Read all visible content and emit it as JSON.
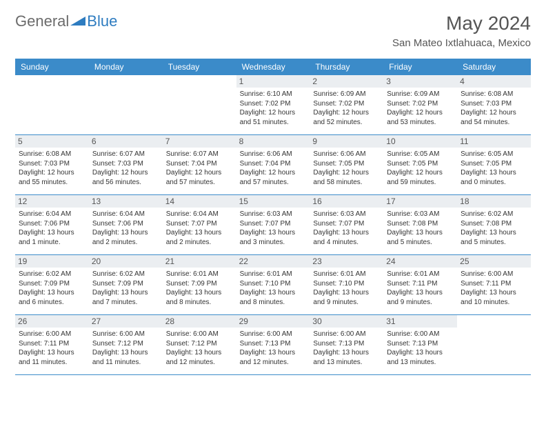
{
  "logo": {
    "part1": "General",
    "part2": "Blue"
  },
  "title": "May 2024",
  "location": "San Mateo Ixtlahuaca, Mexico",
  "colors": {
    "header_bg": "#3b8bc9",
    "header_text": "#ffffff",
    "daynum_bg": "#ebeef1",
    "title_text": "#555555",
    "body_text": "#333333",
    "logo_gray": "#6b6b6b",
    "logo_blue": "#2e7cc0"
  },
  "weekdays": [
    "Sunday",
    "Monday",
    "Tuesday",
    "Wednesday",
    "Thursday",
    "Friday",
    "Saturday"
  ],
  "weeks": [
    [
      {
        "empty": true
      },
      {
        "empty": true
      },
      {
        "empty": true
      },
      {
        "num": "1",
        "sunrise": "Sunrise: 6:10 AM",
        "sunset": "Sunset: 7:02 PM",
        "daylight": "Daylight: 12 hours and 51 minutes."
      },
      {
        "num": "2",
        "sunrise": "Sunrise: 6:09 AM",
        "sunset": "Sunset: 7:02 PM",
        "daylight": "Daylight: 12 hours and 52 minutes."
      },
      {
        "num": "3",
        "sunrise": "Sunrise: 6:09 AM",
        "sunset": "Sunset: 7:02 PM",
        "daylight": "Daylight: 12 hours and 53 minutes."
      },
      {
        "num": "4",
        "sunrise": "Sunrise: 6:08 AM",
        "sunset": "Sunset: 7:03 PM",
        "daylight": "Daylight: 12 hours and 54 minutes."
      }
    ],
    [
      {
        "num": "5",
        "sunrise": "Sunrise: 6:08 AM",
        "sunset": "Sunset: 7:03 PM",
        "daylight": "Daylight: 12 hours and 55 minutes."
      },
      {
        "num": "6",
        "sunrise": "Sunrise: 6:07 AM",
        "sunset": "Sunset: 7:03 PM",
        "daylight": "Daylight: 12 hours and 56 minutes."
      },
      {
        "num": "7",
        "sunrise": "Sunrise: 6:07 AM",
        "sunset": "Sunset: 7:04 PM",
        "daylight": "Daylight: 12 hours and 57 minutes."
      },
      {
        "num": "8",
        "sunrise": "Sunrise: 6:06 AM",
        "sunset": "Sunset: 7:04 PM",
        "daylight": "Daylight: 12 hours and 57 minutes."
      },
      {
        "num": "9",
        "sunrise": "Sunrise: 6:06 AM",
        "sunset": "Sunset: 7:05 PM",
        "daylight": "Daylight: 12 hours and 58 minutes."
      },
      {
        "num": "10",
        "sunrise": "Sunrise: 6:05 AM",
        "sunset": "Sunset: 7:05 PM",
        "daylight": "Daylight: 12 hours and 59 minutes."
      },
      {
        "num": "11",
        "sunrise": "Sunrise: 6:05 AM",
        "sunset": "Sunset: 7:05 PM",
        "daylight": "Daylight: 13 hours and 0 minutes."
      }
    ],
    [
      {
        "num": "12",
        "sunrise": "Sunrise: 6:04 AM",
        "sunset": "Sunset: 7:06 PM",
        "daylight": "Daylight: 13 hours and 1 minute."
      },
      {
        "num": "13",
        "sunrise": "Sunrise: 6:04 AM",
        "sunset": "Sunset: 7:06 PM",
        "daylight": "Daylight: 13 hours and 2 minutes."
      },
      {
        "num": "14",
        "sunrise": "Sunrise: 6:04 AM",
        "sunset": "Sunset: 7:07 PM",
        "daylight": "Daylight: 13 hours and 2 minutes."
      },
      {
        "num": "15",
        "sunrise": "Sunrise: 6:03 AM",
        "sunset": "Sunset: 7:07 PM",
        "daylight": "Daylight: 13 hours and 3 minutes."
      },
      {
        "num": "16",
        "sunrise": "Sunrise: 6:03 AM",
        "sunset": "Sunset: 7:07 PM",
        "daylight": "Daylight: 13 hours and 4 minutes."
      },
      {
        "num": "17",
        "sunrise": "Sunrise: 6:03 AM",
        "sunset": "Sunset: 7:08 PM",
        "daylight": "Daylight: 13 hours and 5 minutes."
      },
      {
        "num": "18",
        "sunrise": "Sunrise: 6:02 AM",
        "sunset": "Sunset: 7:08 PM",
        "daylight": "Daylight: 13 hours and 5 minutes."
      }
    ],
    [
      {
        "num": "19",
        "sunrise": "Sunrise: 6:02 AM",
        "sunset": "Sunset: 7:09 PM",
        "daylight": "Daylight: 13 hours and 6 minutes."
      },
      {
        "num": "20",
        "sunrise": "Sunrise: 6:02 AM",
        "sunset": "Sunset: 7:09 PM",
        "daylight": "Daylight: 13 hours and 7 minutes."
      },
      {
        "num": "21",
        "sunrise": "Sunrise: 6:01 AM",
        "sunset": "Sunset: 7:09 PM",
        "daylight": "Daylight: 13 hours and 8 minutes."
      },
      {
        "num": "22",
        "sunrise": "Sunrise: 6:01 AM",
        "sunset": "Sunset: 7:10 PM",
        "daylight": "Daylight: 13 hours and 8 minutes."
      },
      {
        "num": "23",
        "sunrise": "Sunrise: 6:01 AM",
        "sunset": "Sunset: 7:10 PM",
        "daylight": "Daylight: 13 hours and 9 minutes."
      },
      {
        "num": "24",
        "sunrise": "Sunrise: 6:01 AM",
        "sunset": "Sunset: 7:11 PM",
        "daylight": "Daylight: 13 hours and 9 minutes."
      },
      {
        "num": "25",
        "sunrise": "Sunrise: 6:00 AM",
        "sunset": "Sunset: 7:11 PM",
        "daylight": "Daylight: 13 hours and 10 minutes."
      }
    ],
    [
      {
        "num": "26",
        "sunrise": "Sunrise: 6:00 AM",
        "sunset": "Sunset: 7:11 PM",
        "daylight": "Daylight: 13 hours and 11 minutes."
      },
      {
        "num": "27",
        "sunrise": "Sunrise: 6:00 AM",
        "sunset": "Sunset: 7:12 PM",
        "daylight": "Daylight: 13 hours and 11 minutes."
      },
      {
        "num": "28",
        "sunrise": "Sunrise: 6:00 AM",
        "sunset": "Sunset: 7:12 PM",
        "daylight": "Daylight: 13 hours and 12 minutes."
      },
      {
        "num": "29",
        "sunrise": "Sunrise: 6:00 AM",
        "sunset": "Sunset: 7:13 PM",
        "daylight": "Daylight: 13 hours and 12 minutes."
      },
      {
        "num": "30",
        "sunrise": "Sunrise: 6:00 AM",
        "sunset": "Sunset: 7:13 PM",
        "daylight": "Daylight: 13 hours and 13 minutes."
      },
      {
        "num": "31",
        "sunrise": "Sunrise: 6:00 AM",
        "sunset": "Sunset: 7:13 PM",
        "daylight": "Daylight: 13 hours and 13 minutes."
      },
      {
        "empty": true
      }
    ]
  ]
}
